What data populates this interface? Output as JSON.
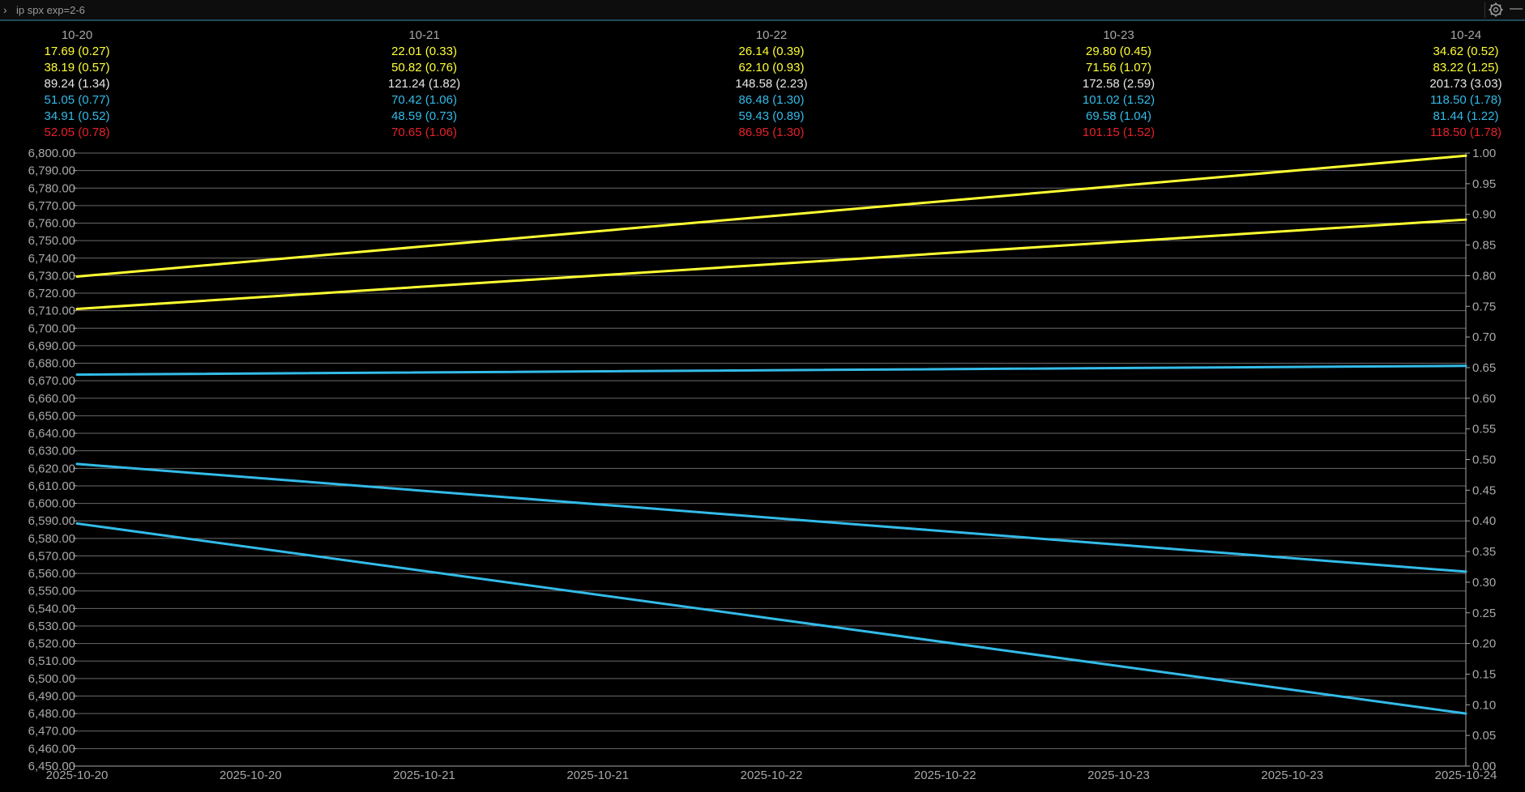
{
  "command": {
    "text": "ip spx exp=2-6"
  },
  "icons": {
    "prompt": "chevron-right-icon",
    "settings": "gear-icon",
    "minimize": "minimize-icon"
  },
  "colors": {
    "yellow": "#ffff33",
    "white": "#e6e6e6",
    "cyan": "#33bbe8",
    "red": "#e8202a",
    "grid": "#6a6a6a",
    "axis": "#a8a8a8"
  },
  "chart_data": {
    "type": "line",
    "x_tick_labels": [
      "2025-10-20",
      "2025-10-20",
      "2025-10-21",
      "2025-10-21",
      "2025-10-22",
      "2025-10-22",
      "2025-10-23",
      "2025-10-23",
      "2025-10-24"
    ],
    "y_left": {
      "ylim": [
        6450,
        6800
      ],
      "step": 10
    },
    "y_right": {
      "ylim": [
        0,
        1
      ],
      "step": 0.05
    },
    "header_columns": [
      {
        "date": "10-20",
        "rows": [
          "17.69 (0.27)",
          "38.19 (0.57)",
          "89.24 (1.34)",
          "51.05 (0.77)",
          "34.91 (0.52)",
          "52.05 (0.78)"
        ]
      },
      {
        "date": "10-21",
        "rows": [
          "22.01 (0.33)",
          "50.82 (0.76)",
          "121.24 (1.82)",
          "70.42 (1.06)",
          "48.59 (0.73)",
          "70.65 (1.06)"
        ]
      },
      {
        "date": "10-22",
        "rows": [
          "26.14 (0.39)",
          "62.10 (0.93)",
          "148.58 (2.23)",
          "86.48 (1.30)",
          "59.43 (0.89)",
          "86.95 (1.30)"
        ]
      },
      {
        "date": "10-23",
        "rows": [
          "29.80 (0.45)",
          "71.56 (1.07)",
          "172.58 (2.59)",
          "101.02 (1.52)",
          "69.58 (1.04)",
          "101.15 (1.52)"
        ]
      },
      {
        "date": "10-24",
        "rows": [
          "34.62 (0.52)",
          "83.22 (1.25)",
          "201.73 (3.03)",
          "118.50 (1.78)",
          "81.44 (1.22)",
          "118.50 (1.78)"
        ]
      }
    ],
    "header_row_colors": [
      "yellow",
      "yellow",
      "white",
      "cyan",
      "cyan",
      "red"
    ],
    "series": [
      {
        "color": "yellow",
        "x": [
          0,
          4
        ],
        "y": [
          6729.5,
          6798.5
        ]
      },
      {
        "color": "yellow",
        "x": [
          0,
          4
        ],
        "y": [
          6711,
          6762
        ]
      },
      {
        "color": "cyan",
        "x": [
          0,
          4
        ],
        "y": [
          6673.5,
          6678.5
        ]
      },
      {
        "color": "cyan",
        "x": [
          0,
          4
        ],
        "y": [
          6622.5,
          6561
        ]
      },
      {
        "color": "cyan",
        "x": [
          0,
          4
        ],
        "y": [
          6588.5,
          6480
        ]
      }
    ]
  }
}
